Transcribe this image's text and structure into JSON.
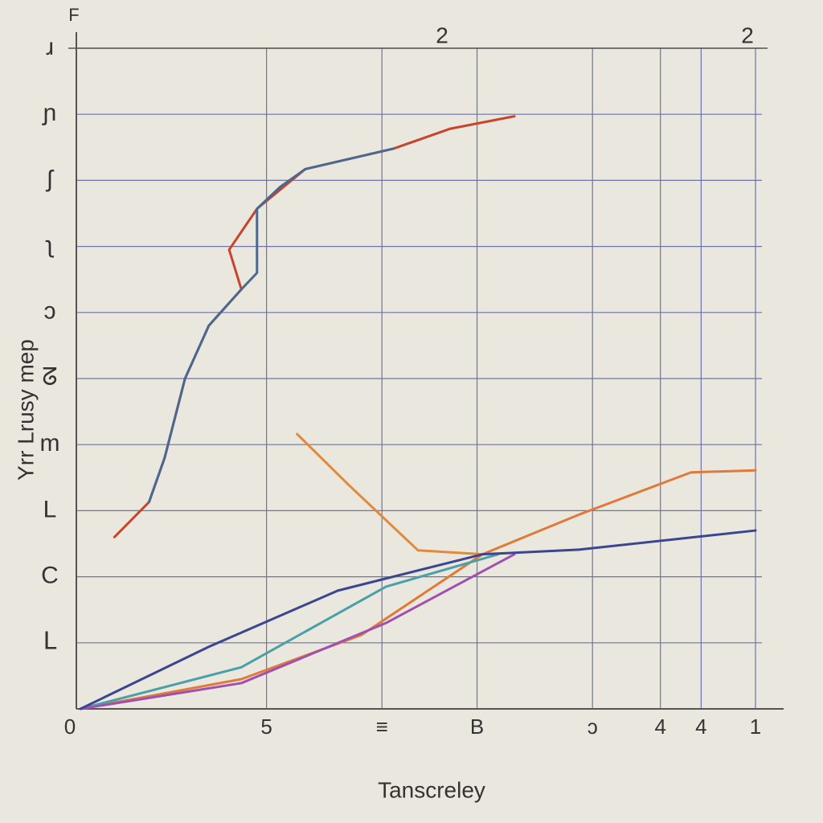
{
  "chart_data": {
    "type": "line",
    "title": "F",
    "x_label": "Tanscreley",
    "y_label": "Yrr Lrusy mep",
    "annotations": [
      "2",
      "2"
    ],
    "xlim": [
      0,
      10
    ],
    "ylim": [
      0,
      10
    ],
    "xticks": [
      {
        "value": 0,
        "label": "0"
      },
      {
        "value": 2.8,
        "label": "5"
      },
      {
        "value": 4.5,
        "label": "≡"
      },
      {
        "value": 5.9,
        "label": "B"
      },
      {
        "value": 7.6,
        "label": "ɔ"
      },
      {
        "value": 8.6,
        "label": "4"
      },
      {
        "value": 9.2,
        "label": "4"
      },
      {
        "value": 10,
        "label": "1"
      }
    ],
    "yticks": [
      {
        "value": 1,
        "label": "ᒪ"
      },
      {
        "value": 2,
        "label": "C"
      },
      {
        "value": 3,
        "label": "L"
      },
      {
        "value": 4,
        "label": "m"
      },
      {
        "value": 5,
        "label": "ᘔ"
      },
      {
        "value": 6,
        "label": "ɔ"
      },
      {
        "value": 7,
        "label": "ʅ"
      },
      {
        "value": 8,
        "label": "ʃ"
      },
      {
        "value": 9,
        "label": "ɲ"
      },
      {
        "value": 10,
        "label": "ɹ"
      }
    ],
    "grid": true,
    "series": [
      {
        "color": "#c8442c",
        "x": [
          0.56,
          1.07,
          1.3,
          1.6,
          1.95,
          2.43,
          2.25,
          2.66,
          3.37,
          4.67,
          5.5,
          6.45
        ],
        "values": [
          2.6,
          3.13,
          3.8,
          5.0,
          5.8,
          6.35,
          6.95,
          7.57,
          8.17,
          8.48,
          8.78,
          8.97
        ]
      },
      {
        "color": "#4a6890",
        "x": [
          1.07,
          1.3,
          1.6,
          1.95,
          2.43,
          2.66,
          2.66,
          3.0,
          3.37,
          4.67
        ],
        "values": [
          3.13,
          3.8,
          5.0,
          5.8,
          6.35,
          6.6,
          7.57,
          7.9,
          8.17,
          8.48
        ]
      },
      {
        "color": "#e08a3c",
        "x": [
          3.25,
          4.0,
          5.03,
          5.98
        ],
        "values": [
          4.16,
          3.4,
          2.4,
          2.34
        ]
      },
      {
        "color": "#e07a38",
        "x": [
          0.06,
          2.43,
          4.2,
          5.98,
          7.4,
          9.05,
          10
        ],
        "values": [
          0,
          0.45,
          1.12,
          2.34,
          2.94,
          3.58,
          3.61
        ]
      },
      {
        "color": "#4aa0a8",
        "x": [
          0.06,
          2.43,
          4.56,
          6.21
        ],
        "values": [
          0,
          0.63,
          1.85,
          2.34
        ]
      },
      {
        "color": "#a050b0",
        "x": [
          0.06,
          2.43,
          4.56,
          6.45
        ],
        "values": [
          0,
          0.39,
          1.3,
          2.34
        ]
      },
      {
        "color": "#3c4690",
        "x": [
          0.06,
          1.95,
          3.85,
          5.98,
          7.4,
          10
        ],
        "values": [
          0,
          0.94,
          1.79,
          2.34,
          2.41,
          2.7
        ]
      }
    ]
  }
}
